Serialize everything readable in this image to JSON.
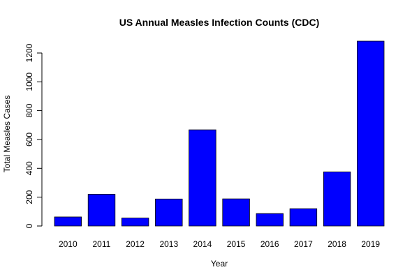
{
  "chart_data": {
    "type": "bar",
    "title": "US Annual Measles Infection Counts (CDC)",
    "xlabel": "Year",
    "ylabel": "Total Measles Cases",
    "categories": [
      "2010",
      "2011",
      "2012",
      "2013",
      "2014",
      "2015",
      "2016",
      "2017",
      "2018",
      "2019"
    ],
    "values": [
      63,
      220,
      55,
      187,
      667,
      188,
      86,
      120,
      375,
      1282
    ],
    "ylim": [
      0,
      1282
    ],
    "yticks": [
      0,
      200,
      400,
      600,
      800,
      1000,
      1200
    ],
    "bar_color": "#0000ff",
    "grid": false,
    "legend": "none"
  }
}
